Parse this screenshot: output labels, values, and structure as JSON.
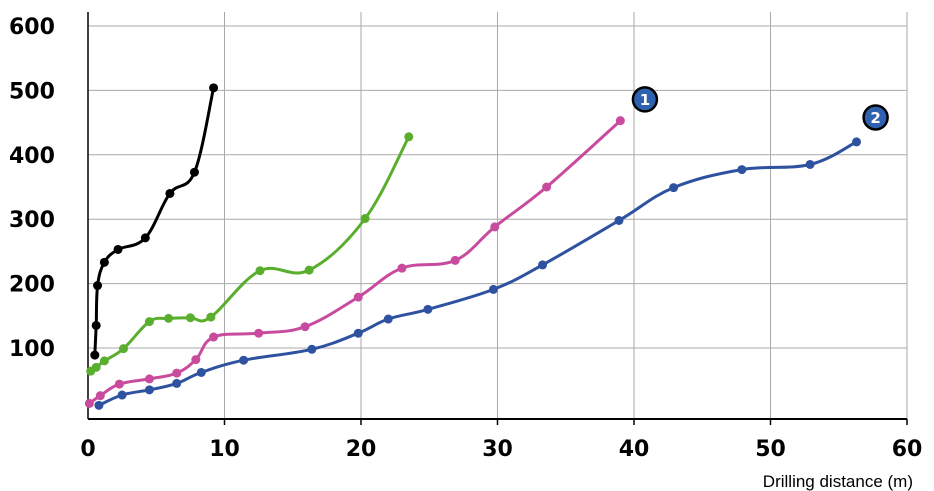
{
  "chart_data": {
    "type": "line",
    "xlabel": "Drilling distance  (m)",
    "ylabel": "",
    "xlim": [
      0,
      60
    ],
    "ylim": [
      0,
      620
    ],
    "x_ticks": [
      0,
      10,
      20,
      30,
      40,
      50,
      60
    ],
    "y_ticks": [
      100,
      200,
      300,
      400,
      500,
      600
    ],
    "grid": true,
    "series": [
      {
        "color": "#000000",
        "points": [
          [
            0.5,
            89
          ],
          [
            0.6,
            135
          ],
          [
            0.7,
            197
          ],
          [
            1.2,
            233
          ],
          [
            2.2,
            253
          ],
          [
            4.2,
            271
          ],
          [
            6.0,
            340
          ],
          [
            7.8,
            373
          ],
          [
            9.2,
            504
          ]
        ]
      },
      {
        "color": "#5aae2e",
        "points": [
          [
            0.2,
            64
          ],
          [
            0.6,
            70
          ],
          [
            1.2,
            80
          ],
          [
            2.6,
            99
          ],
          [
            4.5,
            141
          ],
          [
            5.9,
            146
          ],
          [
            7.5,
            147
          ],
          [
            9.0,
            148
          ],
          [
            12.6,
            220
          ],
          [
            16.2,
            221
          ],
          [
            20.3,
            301
          ],
          [
            23.5,
            428
          ]
        ]
      },
      {
        "color": "#c84b9e",
        "points": [
          [
            0.1,
            14
          ],
          [
            0.9,
            26
          ],
          [
            2.3,
            44
          ],
          [
            4.5,
            52
          ],
          [
            6.5,
            61
          ],
          [
            7.9,
            82
          ],
          [
            9.2,
            117
          ],
          [
            12.5,
            123
          ],
          [
            15.9,
            133
          ],
          [
            19.8,
            179
          ],
          [
            23.0,
            224
          ],
          [
            26.9,
            236
          ],
          [
            29.8,
            288
          ],
          [
            33.6,
            350
          ],
          [
            39.0,
            453
          ]
        ]
      },
      {
        "color": "#2e52a0",
        "points": [
          [
            0.8,
            11
          ],
          [
            2.5,
            27
          ],
          [
            4.5,
            35
          ],
          [
            6.5,
            45
          ],
          [
            8.3,
            62
          ],
          [
            11.4,
            81
          ],
          [
            16.4,
            98
          ],
          [
            19.8,
            123
          ],
          [
            22.0,
            145
          ],
          [
            24.9,
            160
          ],
          [
            29.7,
            191
          ],
          [
            33.3,
            229
          ],
          [
            38.9,
            298
          ],
          [
            42.9,
            349
          ],
          [
            47.9,
            377
          ],
          [
            52.9,
            385
          ],
          [
            56.3,
            420
          ]
        ]
      }
    ],
    "annotations": [
      {
        "text": "1",
        "x": 40.8,
        "y": 486,
        "color": "#2e62b0"
      },
      {
        "text": "2",
        "x": 57.7,
        "y": 458,
        "color": "#2e62b0"
      }
    ]
  }
}
